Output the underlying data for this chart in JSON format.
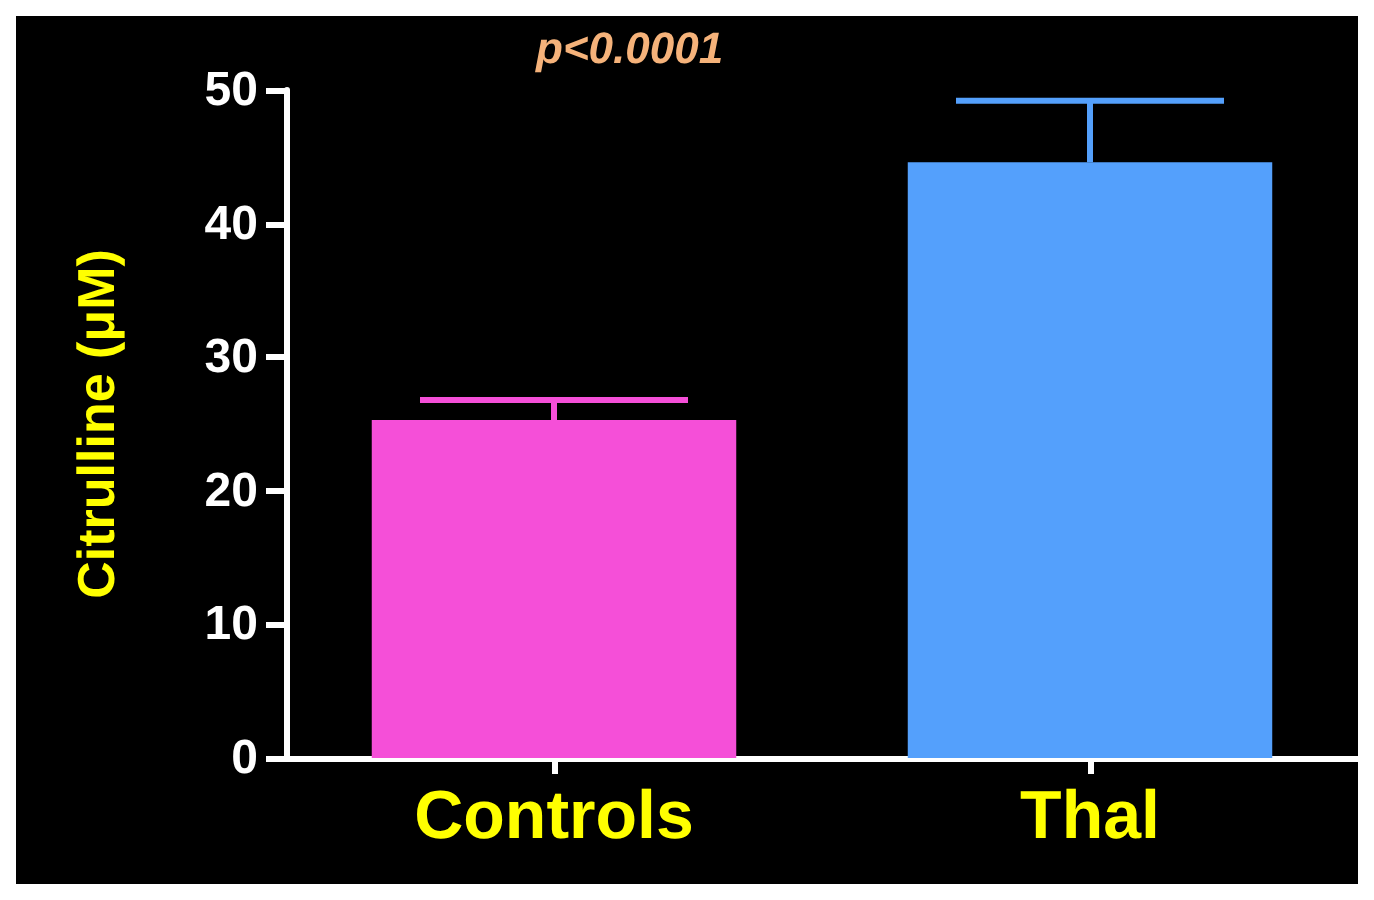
{
  "chart_data": {
    "type": "bar",
    "ylabel": "Citrulline (μM)",
    "categories": [
      "Controls",
      "Thal"
    ],
    "values": [
      25.3,
      44.6
    ],
    "colors": [
      "#f54fd8",
      "#54a0fc"
    ],
    "errors": [
      [
        25.3,
        26.8
      ],
      [
        44.6,
        49.2
      ]
    ],
    "ylim": [
      0,
      50
    ],
    "yticks": [
      0,
      10,
      20,
      30,
      40,
      50
    ],
    "grid": false,
    "annotations": [
      "p<0.0001"
    ]
  }
}
